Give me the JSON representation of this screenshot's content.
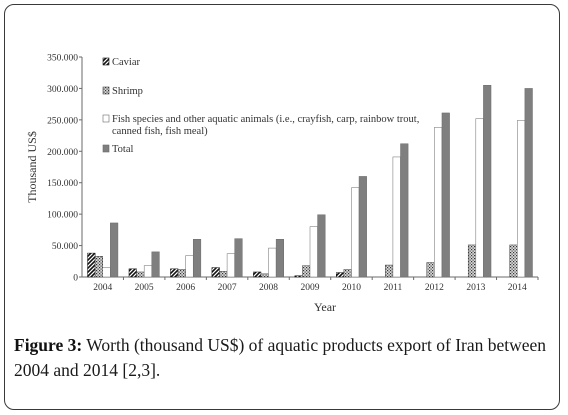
{
  "figure": {
    "caption_label": "Figure 3:",
    "caption_text": " Worth (thousand US$) of aquatic products export of Iran between 2004 and 2014 [2,3]."
  },
  "chart_data": {
    "type": "bar",
    "xlabel": "Year",
    "ylabel": "Thousand US$",
    "ylim": [
      0,
      350000
    ],
    "yticks": [
      "0",
      "50.000",
      "100.000",
      "150.000",
      "200.000",
      "250.000",
      "300.000",
      "350.000"
    ],
    "legend_position": "top-left",
    "categories": [
      "2004",
      "2005",
      "2006",
      "2007",
      "2008",
      "2009",
      "2010",
      "2011",
      "2012",
      "2013",
      "2014"
    ],
    "series": [
      {
        "name": "Caviar",
        "style": "diagonal-hatch",
        "color": "#222222",
        "values": [
          38000,
          13000,
          13000,
          15000,
          8000,
          2000,
          7000,
          0,
          0,
          0,
          0
        ]
      },
      {
        "name": "Shrimp",
        "style": "dotted-hatch",
        "color": "#555555",
        "values": [
          33000,
          8000,
          12000,
          9000,
          5000,
          18000,
          12000,
          19000,
          23000,
          51000,
          51000
        ]
      },
      {
        "name": "Fish species and other aquatic animals (i.e., crayfish, carp, rainbow trout, canned fish, fish meal)",
        "style": "white",
        "color": "#ffffff",
        "values": [
          15000,
          18000,
          34000,
          37000,
          46000,
          80000,
          142000,
          191000,
          238000,
          252000,
          249000
        ]
      },
      {
        "name": "Total",
        "style": "solid",
        "color": "#7f7f7f",
        "values": [
          86000,
          40000,
          60000,
          61000,
          60000,
          99000,
          160000,
          212000,
          261000,
          305000,
          300000
        ]
      }
    ]
  }
}
